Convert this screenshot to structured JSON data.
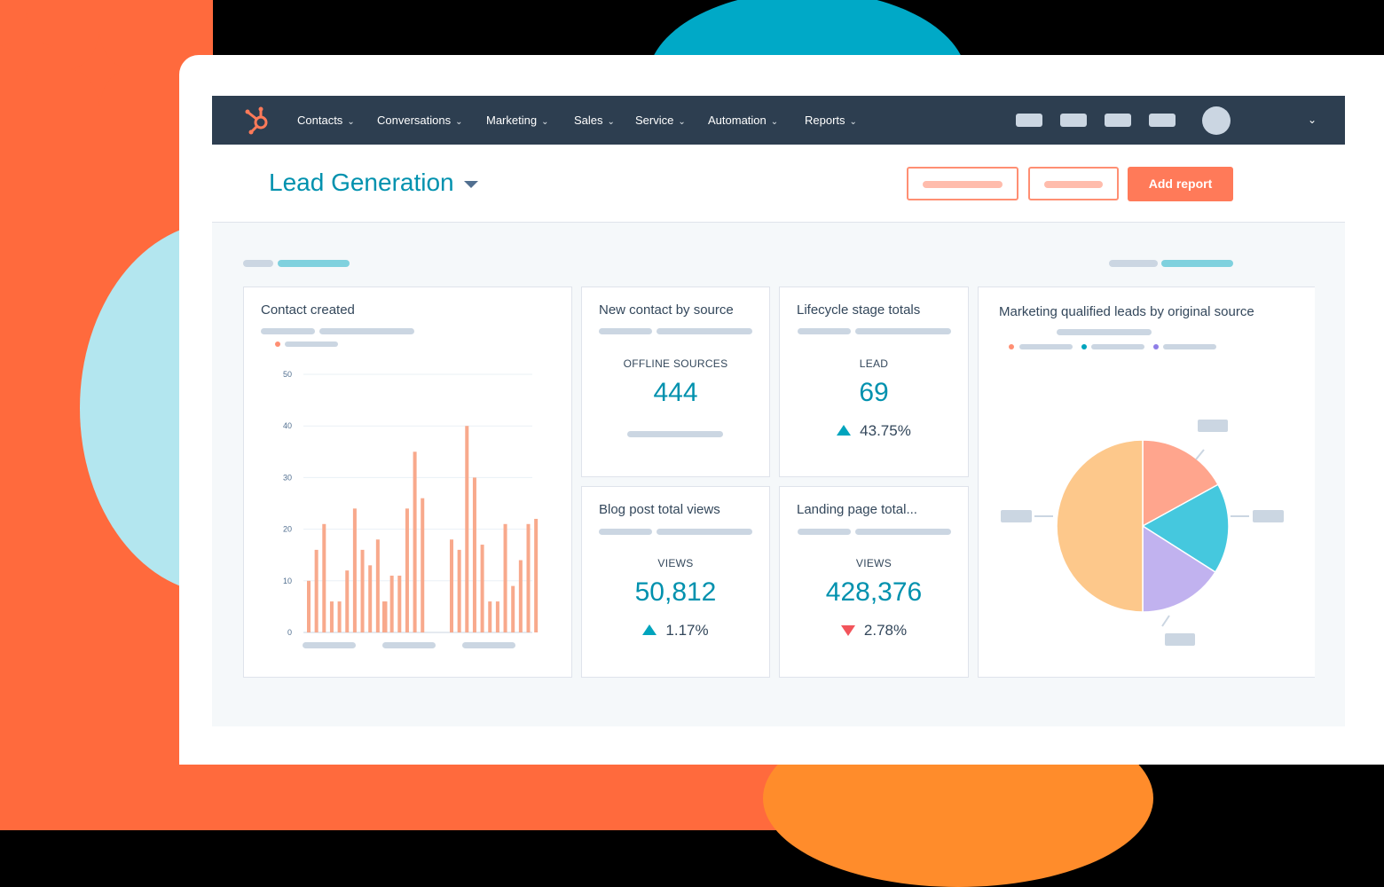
{
  "nav": {
    "items": [
      {
        "label": "Contacts"
      },
      {
        "label": "Conversations"
      },
      {
        "label": "Marketing"
      },
      {
        "label": "Sales"
      },
      {
        "label": "Service"
      },
      {
        "label": "Automation"
      },
      {
        "label": "Reports"
      }
    ]
  },
  "header": {
    "title": "Lead Generation",
    "add_report_label": "Add report"
  },
  "panels": {
    "contact_created": {
      "title": "Contact created",
      "chart_data": {
        "type": "bar",
        "title": "Contact created",
        "ylim": [
          0,
          50
        ],
        "yticks": [
          "0",
          "10",
          "20",
          "30",
          "40",
          "50"
        ],
        "values": [
          10,
          16,
          21,
          6,
          6,
          12,
          24,
          16,
          13,
          18,
          6,
          6,
          11,
          11,
          24,
          35,
          26,
          18,
          16,
          40,
          30,
          17,
          6,
          6,
          21,
          9,
          14,
          21,
          22
        ],
        "color": "#f8a98c"
      }
    },
    "new_contact": {
      "title": "New contact by source",
      "label": "OFFLINE SOURCES",
      "value": "444"
    },
    "lifecycle": {
      "title": "Lifecycle stage totals",
      "label": "LEAD",
      "value": "69",
      "change": "43.75%"
    },
    "blog": {
      "title": "Blog post total views",
      "label": "VIEWS",
      "value": "50,812",
      "change": "1.17%"
    },
    "landing": {
      "title": "Landing page total...",
      "label": "VIEWS",
      "value": "428,376",
      "change": "2.78%"
    },
    "mql": {
      "title": "Marketing qualified leads by original source",
      "chart_data": {
        "type": "pie",
        "values": [
          50,
          17,
          17,
          16
        ],
        "colors": [
          "#fdc88b",
          "#ffa58d",
          "#45c8de",
          "#c1b2ef"
        ]
      }
    }
  },
  "colors": {
    "nav_bg": "#2d3e50",
    "accent": "#0091ae",
    "brand": "#ff7a59",
    "up": "#00a4bd",
    "down": "#f2545b"
  }
}
